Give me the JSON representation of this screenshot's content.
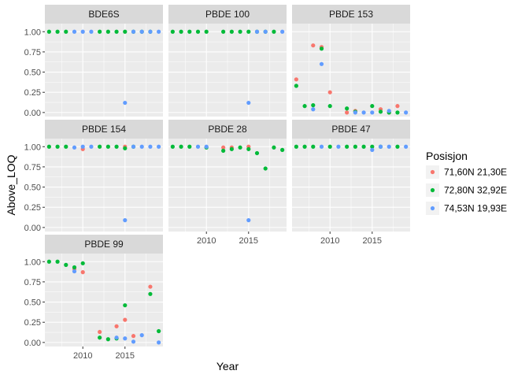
{
  "chart_data": {
    "type": "scatter",
    "facet_type": "wrap",
    "xlabel": "Year",
    "ylabel": "Above_LOQ",
    "xlim": [
      2005.5,
      2019.5
    ],
    "ylim": [
      -0.05,
      1.1
    ],
    "x_ticks": [
      2010,
      2015
    ],
    "y_ticks": [
      0.0,
      0.25,
      0.5,
      0.75,
      1.0
    ],
    "y_tick_labels": [
      "0.00",
      "0.25",
      "0.50",
      "0.75",
      "1.00"
    ],
    "x_tick_labels": [
      "2010",
      "2015"
    ],
    "grid": true,
    "legend": {
      "title": "Posisjon",
      "placement": "right",
      "entries": [
        {
          "name": "71,60N 21,30E",
          "color": "#F8766D"
        },
        {
          "name": "72,80N 32,92E",
          "color": "#00BA38"
        },
        {
          "name": "74,53N 19,93E",
          "color": "#619CFF"
        }
      ]
    },
    "panels": [
      {
        "title": "BDE6S",
        "series": [
          {
            "name": "71,60N 21,30E",
            "points": []
          },
          {
            "name": "72,80N 32,92E",
            "points": [
              [
                2006,
                1
              ],
              [
                2007,
                1
              ],
              [
                2008,
                1
              ],
              [
                2012,
                1
              ],
              [
                2013,
                1
              ],
              [
                2014,
                1
              ],
              [
                2015,
                1
              ],
              [
                2016,
                1
              ],
              [
                2017,
                1
              ],
              [
                2018,
                1
              ]
            ]
          },
          {
            "name": "74,53N 19,93E",
            "points": [
              [
                2009,
                1
              ],
              [
                2010,
                1
              ],
              [
                2011,
                1
              ],
              [
                2015,
                0.12
              ],
              [
                2016,
                1
              ],
              [
                2017,
                1
              ],
              [
                2018,
                1
              ],
              [
                2019,
                1
              ]
            ]
          }
        ]
      },
      {
        "title": "PBDE 100",
        "series": [
          {
            "name": "71,60N 21,30E",
            "points": []
          },
          {
            "name": "72,80N 32,92E",
            "points": [
              [
                2006,
                1
              ],
              [
                2007,
                1
              ],
              [
                2008,
                1
              ],
              [
                2009,
                1
              ],
              [
                2010,
                1
              ],
              [
                2012,
                1
              ],
              [
                2013,
                1
              ],
              [
                2014,
                1
              ],
              [
                2015,
                1
              ],
              [
                2016,
                1
              ],
              [
                2017,
                1
              ],
              [
                2018,
                1
              ]
            ]
          },
          {
            "name": "74,53N 19,93E",
            "points": [
              [
                2015,
                0.12
              ],
              [
                2016,
                1
              ],
              [
                2017,
                1
              ],
              [
                2019,
                1
              ]
            ]
          }
        ]
      },
      {
        "title": "PBDE 153",
        "series": [
          {
            "name": "71,60N 21,30E",
            "points": [
              [
                2006,
                0.41
              ],
              [
                2008,
                0.83
              ],
              [
                2009,
                0.81
              ],
              [
                2010,
                0.25
              ],
              [
                2012,
                0.0
              ],
              [
                2013,
                0.02
              ],
              [
                2016,
                0.04
              ],
              [
                2017,
                0.0
              ],
              [
                2018,
                0.08
              ]
            ]
          },
          {
            "name": "72,80N 32,92E",
            "points": [
              [
                2006,
                0.33
              ],
              [
                2007,
                0.08
              ],
              [
                2008,
                0.09
              ],
              [
                2009,
                0.79
              ],
              [
                2010,
                0.08
              ],
              [
                2012,
                0.05
              ],
              [
                2013,
                0.01
              ],
              [
                2015,
                0.08
              ],
              [
                2016,
                0.01
              ],
              [
                2017,
                0.0
              ],
              [
                2018,
                0.0
              ]
            ]
          },
          {
            "name": "74,53N 19,93E",
            "points": [
              [
                2008,
                0.04
              ],
              [
                2009,
                0.6
              ],
              [
                2013,
                0.0
              ],
              [
                2014,
                0.0
              ],
              [
                2015,
                0.0
              ],
              [
                2017,
                0.02
              ],
              [
                2019,
                0.0
              ]
            ]
          }
        ]
      },
      {
        "title": "PBDE 154",
        "series": [
          {
            "name": "71,60N 21,30E",
            "points": [
              [
                2010,
                0.97
              ],
              [
                2015,
                1
              ]
            ]
          },
          {
            "name": "72,80N 32,92E",
            "points": [
              [
                2006,
                1
              ],
              [
                2007,
                1
              ],
              [
                2008,
                1
              ],
              [
                2012,
                1
              ],
              [
                2013,
                1
              ],
              [
                2014,
                1
              ],
              [
                2015,
                0.98
              ],
              [
                2016,
                1
              ]
            ]
          },
          {
            "name": "74,53N 19,93E",
            "points": [
              [
                2009,
                0.99
              ],
              [
                2010,
                1
              ],
              [
                2011,
                1
              ],
              [
                2015,
                0.09
              ],
              [
                2016,
                1
              ],
              [
                2017,
                1
              ],
              [
                2018,
                1
              ],
              [
                2019,
                1
              ]
            ]
          }
        ]
      },
      {
        "title": "PBDE 28",
        "series": [
          {
            "name": "71,60N 21,30E",
            "points": [
              [
                2012,
                0.99
              ],
              [
                2013,
                0.99
              ],
              [
                2015,
                1
              ]
            ]
          },
          {
            "name": "72,80N 32,92E",
            "points": [
              [
                2006,
                1
              ],
              [
                2007,
                1
              ],
              [
                2008,
                1
              ],
              [
                2010,
                0.99
              ],
              [
                2012,
                0.95
              ],
              [
                2013,
                0.97
              ],
              [
                2014,
                0.99
              ],
              [
                2015,
                0.97
              ],
              [
                2016,
                0.92
              ],
              [
                2017,
                0.73
              ],
              [
                2018,
                0.99
              ],
              [
                2019,
                0.96
              ]
            ]
          },
          {
            "name": "74,53N 19,93E",
            "points": [
              [
                2009,
                1
              ],
              [
                2010,
                1
              ],
              [
                2015,
                0.09
              ]
            ]
          }
        ]
      },
      {
        "title": "PBDE 47",
        "series": [
          {
            "name": "71,60N 21,30E",
            "points": []
          },
          {
            "name": "72,80N 32,92E",
            "points": [
              [
                2006,
                1
              ],
              [
                2007,
                1
              ],
              [
                2008,
                1
              ],
              [
                2010,
                1
              ],
              [
                2012,
                1
              ],
              [
                2013,
                1
              ],
              [
                2014,
                1
              ],
              [
                2015,
                1
              ],
              [
                2016,
                1
              ],
              [
                2018,
                1
              ]
            ]
          },
          {
            "name": "74,53N 19,93E",
            "points": [
              [
                2009,
                1
              ],
              [
                2011,
                1
              ],
              [
                2015,
                0.96
              ],
              [
                2016,
                1
              ],
              [
                2017,
                1
              ],
              [
                2019,
                1
              ]
            ]
          }
        ]
      },
      {
        "title": "PBDE 99",
        "series": [
          {
            "name": "71,60N 21,30E",
            "points": [
              [
                2009,
                0.91
              ],
              [
                2010,
                0.87
              ],
              [
                2012,
                0.13
              ],
              [
                2014,
                0.2
              ],
              [
                2015,
                0.28
              ],
              [
                2016,
                0.08
              ],
              [
                2018,
                0.69
              ]
            ]
          },
          {
            "name": "72,80N 32,92E",
            "points": [
              [
                2006,
                1
              ],
              [
                2007,
                1
              ],
              [
                2008,
                0.96
              ],
              [
                2009,
                0.93
              ],
              [
                2010,
                0.98
              ],
              [
                2012,
                0.06
              ],
              [
                2013,
                0.04
              ],
              [
                2014,
                0.05
              ],
              [
                2015,
                0.46
              ],
              [
                2018,
                0.6
              ],
              [
                2019,
                0.14
              ]
            ]
          },
          {
            "name": "74,53N 19,93E",
            "points": [
              [
                2009,
                0.88
              ],
              [
                2014,
                0.06
              ],
              [
                2015,
                0.05
              ],
              [
                2016,
                0.01
              ],
              [
                2017,
                0.09
              ],
              [
                2019,
                0.0
              ]
            ]
          }
        ]
      }
    ]
  }
}
